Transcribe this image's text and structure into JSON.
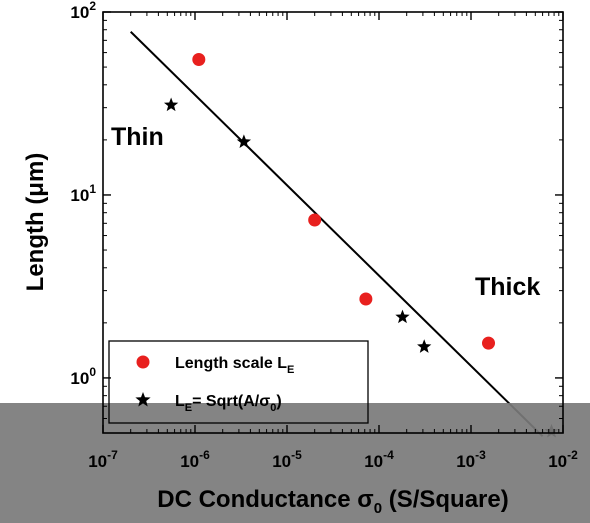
{
  "chart_data": {
    "type": "scatter",
    "xscale": "log",
    "yscale": "log",
    "xlim": [
      1e-07,
      0.01
    ],
    "ylim": [
      0.5,
      100
    ],
    "xlabel_main": "DC Conductance ",
    "xlabel_sym": "σ",
    "xlabel_sub": "0",
    "xlabel_unit": " (S/Square)",
    "ylabel": "Length (μm)",
    "x_ticks": [
      {
        "base": "10",
        "exp": "-7"
      },
      {
        "base": "10",
        "exp": "-6"
      },
      {
        "base": "10",
        "exp": "-5"
      },
      {
        "base": "10",
        "exp": "-4"
      },
      {
        "base": "10",
        "exp": "-3"
      },
      {
        "base": "10",
        "exp": "-2"
      }
    ],
    "y_ticks": [
      {
        "base": "10",
        "exp": "0"
      },
      {
        "base": "10",
        "exp": "1"
      },
      {
        "base": "10",
        "exp": "2"
      }
    ],
    "annotations": [
      "Thin",
      "Thick"
    ],
    "legend_placement": "bottom-left",
    "series": [
      {
        "name_main": "Length scale L",
        "name_sub": "E",
        "marker": "circle",
        "color": "#e8201e",
        "x": [
          1.1e-06,
          2e-05,
          7.2e-05,
          0.00155
        ],
        "y": [
          55,
          7.3,
          2.7,
          1.55
        ]
      },
      {
        "name_main": "L",
        "name_sub": "E",
        "name_rest": "= Sqrt(A/",
        "name_sym": "σ",
        "name_sub2": "0",
        "name_end": ")",
        "marker": "star",
        "color": "#000000",
        "x": [
          5.5e-07,
          3.4e-06,
          0.00018,
          0.00031,
          0.0075
        ],
        "y": [
          31,
          19.5,
          2.15,
          1.48,
          0.51
        ]
      }
    ],
    "fit_line": {
      "x": [
        2e-07,
        0.006
      ],
      "y": [
        78,
        0.48
      ],
      "color": "#000000"
    },
    "overlay_band_color": "#7a7a7a"
  }
}
